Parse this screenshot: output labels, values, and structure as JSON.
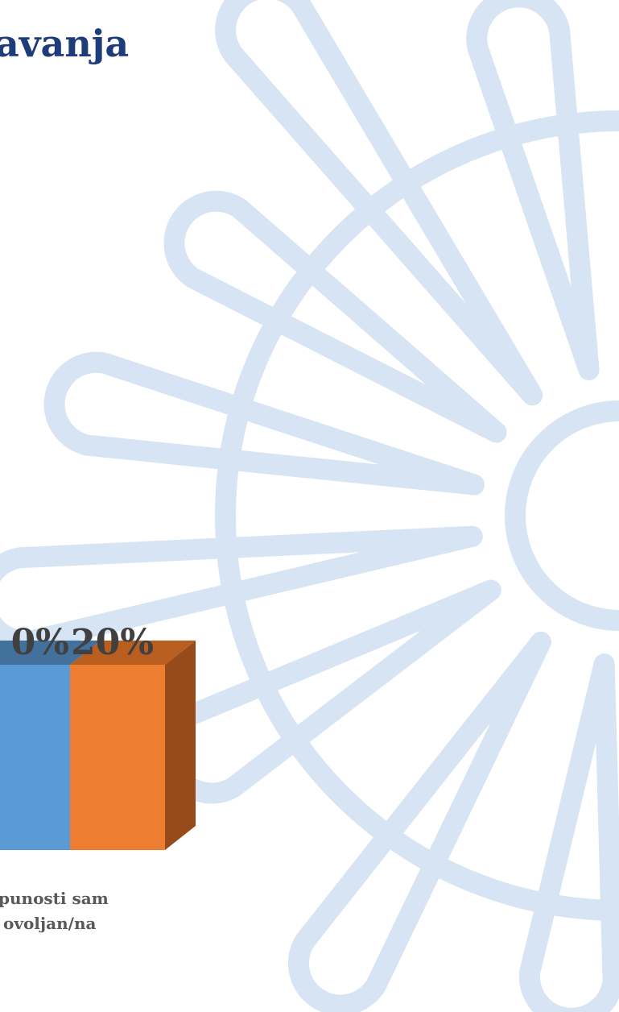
{
  "title": "avanja",
  "bars": [
    {
      "label": "0%",
      "color": "#5b9bd5",
      "top_color": "#41719c"
    },
    {
      "label": "20%",
      "color": "#ed7d31",
      "top_color": "#b85e1f",
      "side_color": "#974b1a"
    }
  ],
  "category": [
    "punosti sam",
    "ovoljan/na"
  ]
}
